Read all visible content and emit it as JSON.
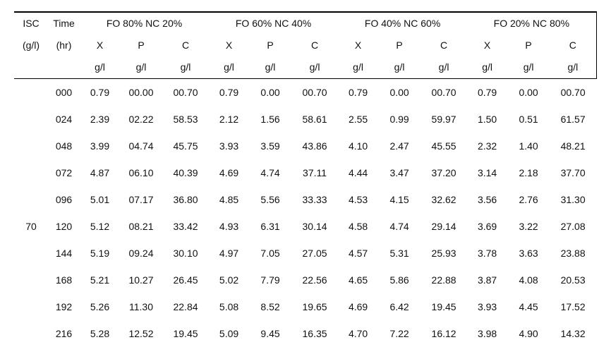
{
  "table": {
    "left_columns": {
      "isc_title": "ISC",
      "isc_unit": "(g/l)",
      "time_title": "Time",
      "time_unit": "(hr)"
    },
    "groups": [
      {
        "label": "FO 80% NC 20%"
      },
      {
        "label": "FO 60% NC 40%"
      },
      {
        "label": "FO 40% NC 60%"
      },
      {
        "label": "FO 20% NC 80%"
      }
    ],
    "sub_columns": [
      "X",
      "P",
      "C"
    ],
    "unit_label": "g/l",
    "isc_value": "70",
    "isc_value_row_index": 5,
    "rows": [
      {
        "time": "000",
        "values": [
          "0.79",
          "00.00",
          "00.70",
          "0.79",
          "0.00",
          "00.70",
          "0.79",
          "0.00",
          "00.70",
          "0.79",
          "0.00",
          "00.70"
        ]
      },
      {
        "time": "024",
        "values": [
          "2.39",
          "02.22",
          "58.53",
          "2.12",
          "1.56",
          "58.61",
          "2.55",
          "0.99",
          "59.97",
          "1.50",
          "0.51",
          "61.57"
        ]
      },
      {
        "time": "048",
        "values": [
          "3.99",
          "04.74",
          "45.75",
          "3.93",
          "3.59",
          "43.86",
          "4.10",
          "2.47",
          "45.55",
          "2.32",
          "1.40",
          "48.21"
        ]
      },
      {
        "time": "072",
        "values": [
          "4.87",
          "06.10",
          "40.39",
          "4.69",
          "4.74",
          "37.11",
          "4.44",
          "3.47",
          "37.20",
          "3.14",
          "2.18",
          "37.70"
        ]
      },
      {
        "time": "096",
        "values": [
          "5.01",
          "07.17",
          "36.80",
          "4.85",
          "5.56",
          "33.33",
          "4.53",
          "4.15",
          "32.62",
          "3.56",
          "2.76",
          "31.30"
        ]
      },
      {
        "time": "120",
        "values": [
          "5.12",
          "08.21",
          "33.42",
          "4.93",
          "6.31",
          "30.14",
          "4.58",
          "4.74",
          "29.14",
          "3.69",
          "3.22",
          "27.08"
        ]
      },
      {
        "time": "144",
        "values": [
          "5.19",
          "09.24",
          "30.10",
          "4.97",
          "7.05",
          "27.05",
          "4.57",
          "5.31",
          "25.93",
          "3.78",
          "3.63",
          "23.88"
        ]
      },
      {
        "time": "168",
        "values": [
          "5.21",
          "10.27",
          "26.45",
          "5.02",
          "7.79",
          "22.56",
          "4.65",
          "5.86",
          "22.88",
          "3.87",
          "4.08",
          "20.53"
        ]
      },
      {
        "time": "192",
        "values": [
          "5.26",
          "11.30",
          "22.84",
          "5.08",
          "8.52",
          "19.65",
          "4.69",
          "6.42",
          "19.45",
          "3.93",
          "4.45",
          "17.52"
        ]
      },
      {
        "time": "216",
        "values": [
          "5.28",
          "12.52",
          "19.45",
          "5.09",
          "9.45",
          "16.35",
          "4.70",
          "7.22",
          "16.12",
          "3.98",
          "4.90",
          "14.32"
        ]
      }
    ],
    "colors": {
      "text": "#111111",
      "rule": "#000000",
      "background": "#ffffff"
    }
  }
}
